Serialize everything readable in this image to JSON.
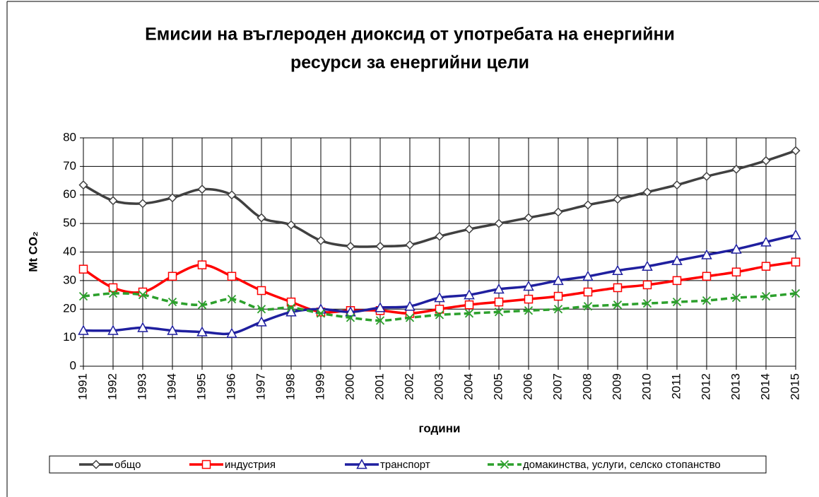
{
  "chart_data": {
    "type": "line",
    "title": [
      "Емисии на въглероден диоксид от употребата на енергийни",
      "ресурси за енергийни цели"
    ],
    "x_label": "години",
    "y_label": "Mt CO₂",
    "categories": [
      "1991",
      "1992",
      "1993",
      "1994",
      "1995",
      "1996",
      "1997",
      "1998",
      "1999",
      "2000",
      "2001",
      "2002",
      "2003",
      "2004",
      "2005",
      "2006",
      "2007",
      "2008",
      "2009",
      "2010",
      "2011",
      "2012",
      "2013",
      "2014",
      "2015"
    ],
    "series": [
      {
        "name": "общо",
        "color": "#404040",
        "marker": "diamond",
        "values": [
          63.5,
          58,
          57,
          59,
          62,
          60,
          52,
          49.5,
          44,
          42,
          42,
          42.5,
          45.5,
          48,
          50,
          52,
          54,
          56.5,
          58.5,
          61,
          63.5,
          66.5,
          69,
          72,
          75.5
        ]
      },
      {
        "name": "индустрия",
        "color": "#ff0000",
        "marker": "square",
        "values": [
          34,
          27.5,
          26,
          31.5,
          35.5,
          31.5,
          26.5,
          22.5,
          19,
          19.5,
          19.5,
          18.5,
          20,
          21.5,
          22.5,
          23.5,
          24.5,
          26,
          27.5,
          28.5,
          30,
          31.5,
          33,
          35,
          36.5
        ]
      },
      {
        "name": "транспорт",
        "color": "#1f1f9f",
        "marker": "triangle",
        "values": [
          12.5,
          12.5,
          13.5,
          12.5,
          12,
          11.5,
          15.5,
          19,
          20,
          19,
          20.5,
          21,
          24,
          25,
          27,
          28,
          30,
          31.5,
          33.5,
          35,
          37,
          39,
          41,
          43.5,
          46
        ]
      },
      {
        "name": "домакинства, услуги, селско стопанство",
        "color": "#2ca02c",
        "marker": "x",
        "dashed": true,
        "values": [
          24.5,
          25.5,
          25,
          22.5,
          21.5,
          23.5,
          20,
          20.5,
          18.5,
          17,
          16,
          17,
          18,
          18.5,
          19,
          19.5,
          20,
          21,
          21.5,
          22,
          22.5,
          23,
          24,
          24.5,
          25.5
        ]
      }
    ],
    "ylim": [
      0,
      80
    ],
    "yticks": [
      0,
      10,
      20,
      30,
      40,
      50,
      60,
      70,
      80
    ],
    "grid": true,
    "legend": "bottom"
  }
}
